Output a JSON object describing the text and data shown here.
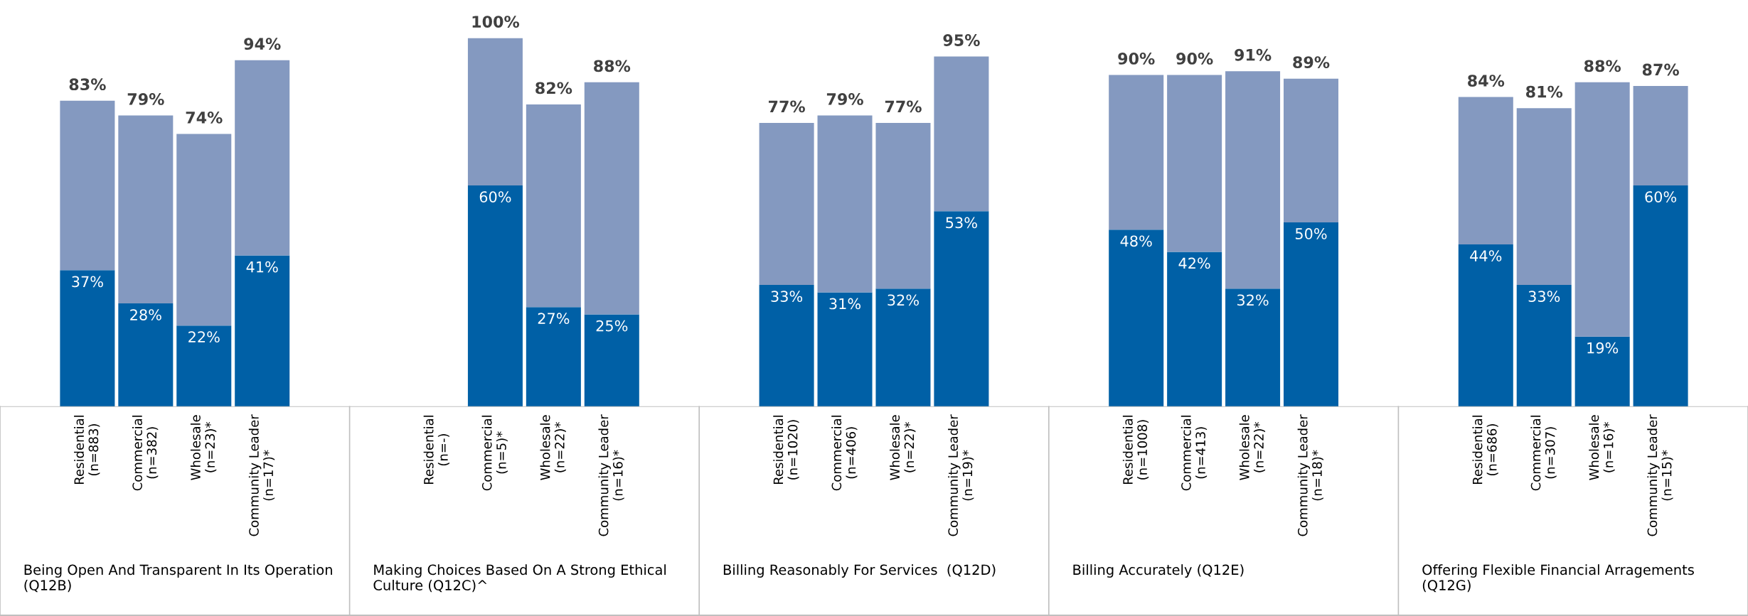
{
  "chart_data": {
    "type": "bar",
    "stacked": true,
    "categories": [
      null,
      "Residential\n(n=883)",
      "Commercial\n(n=382)",
      "Wholesale\n(n=23)*",
      "Community Leader\n(n=17)*",
      null,
      null,
      "Residential\n(n=-)",
      "Commercial\n(n=5)*",
      "Wholesale\n(n=22)*",
      "Community Leader\n(n=16)*",
      null,
      null,
      "Residential\n(n=1020)",
      "Commercial\n(n=406)",
      "Wholesale\n(n=22)*",
      "Community Leader\n(n=19)*",
      null,
      null,
      "Residential\n(n=1008)",
      "Commercial\n(n=413)",
      "Wholesale\n(n=22)*",
      "Community Leader\n(n=18)*",
      null,
      null,
      "Residential\n(n=686)",
      "Commercial\n(n=307)",
      "Wholesale\n(n=16)*",
      "Community Leader\n(n=15)*",
      null
    ],
    "series": [
      {
        "color": "#0060a6",
        "values": [
          null,
          37,
          28,
          22,
          41,
          null,
          null,
          null,
          60,
          27,
          25,
          null,
          null,
          33,
          31,
          32,
          53,
          null,
          null,
          48,
          42,
          32,
          50,
          null,
          null,
          44,
          33,
          19,
          60,
          null
        ],
        "value_labels": [
          null,
          "37%",
          "28%",
          "22%",
          "41%",
          null,
          null,
          null,
          "60%",
          "27%",
          "25%",
          null,
          null,
          "33%",
          "31%",
          "32%",
          "53%",
          null,
          null,
          "48%",
          "42%",
          "32%",
          "50%",
          null,
          null,
          "44%",
          "33%",
          "19%",
          "60%",
          null
        ]
      },
      {
        "color": "#8499c0",
        "values": [
          null,
          46,
          51,
          52,
          53,
          null,
          null,
          null,
          40,
          55,
          63,
          null,
          null,
          44,
          48,
          45,
          42,
          null,
          null,
          42,
          48,
          59,
          39,
          null,
          null,
          40,
          48,
          69,
          27,
          null
        ]
      }
    ],
    "totals": [
      null,
      "83%",
      "79%",
      "74%",
      "94%",
      null,
      null,
      null,
      "100%",
      "82%",
      "88%",
      null,
      null,
      "77%",
      "79%",
      "77%",
      "95%",
      null,
      null,
      "90%",
      "90%",
      "91%",
      "89%",
      null,
      null,
      "84%",
      "81%",
      "88%",
      "87%",
      null
    ],
    "annotations": [
      "Being Open And Transparent In Its Operation\n(Q12B)",
      "Making Choices Based On A Strong Ethical\nCulture (Q12C)^",
      "Billing Reasonably For Services  (Q12D)",
      "Billing Accurately (Q12E)",
      "Offering Flexible Financial Arragements\n(Q12G)"
    ]
  }
}
